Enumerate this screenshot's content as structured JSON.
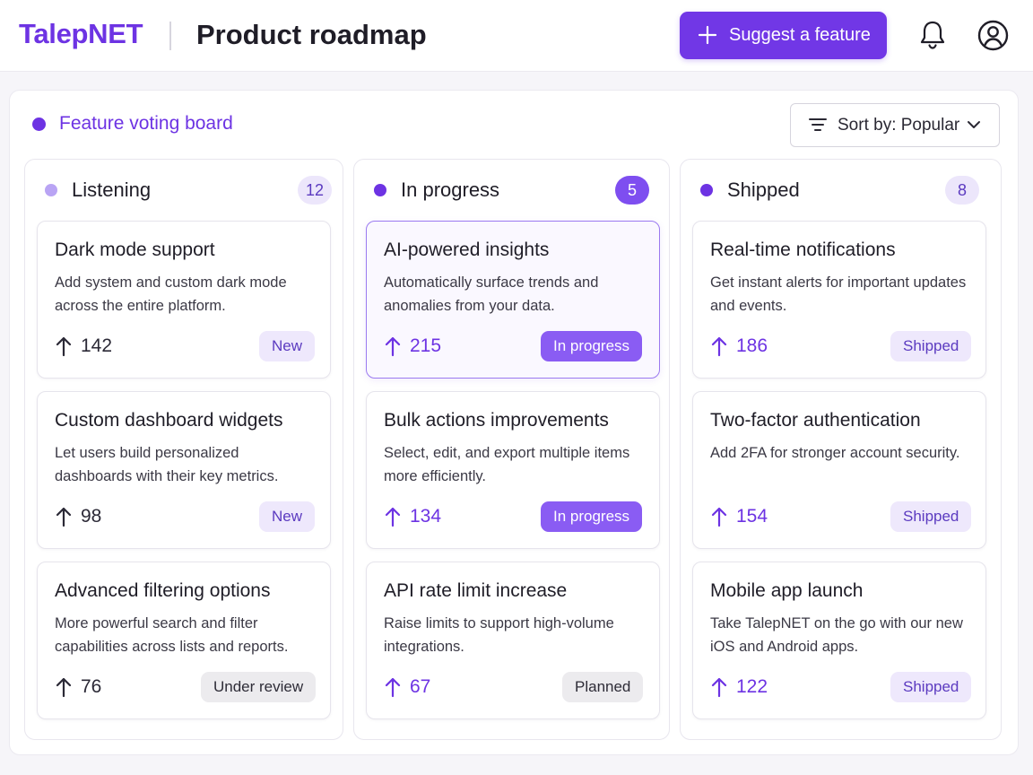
{
  "app": {
    "logo": "TalepNET",
    "page_title": "Product roadmap"
  },
  "header": {
    "suggest_label": "Suggest a feature"
  },
  "board": {
    "title": "Feature voting board",
    "sort_label": "Sort by: Popular"
  },
  "columns": [
    {
      "title": "Listening",
      "count": "12",
      "dot_color": "#b9a4f4",
      "cards": [
        {
          "title": "Dark mode support",
          "desc": "Add system and custom dark mode across the entire platform.",
          "votes": "142",
          "status": "New"
        },
        {
          "title": "Custom dashboard widgets",
          "desc": "Let users build personalized dashboards with their key metrics.",
          "votes": "98",
          "status": "New"
        },
        {
          "title": "Advanced filtering options",
          "desc": "More powerful search and filter capabilities across lists and reports.",
          "votes": "76",
          "status": "Under review"
        }
      ]
    },
    {
      "title": "In progress",
      "count": "5",
      "dot_color": "#6d33e3",
      "cards": [
        {
          "title": "AI-powered insights",
          "desc": "Automatically surface trends and anomalies from your data.",
          "votes": "215",
          "status": "In progress"
        },
        {
          "title": "Bulk actions improvements",
          "desc": "Select, edit, and export multiple items more efficiently.",
          "votes": "134",
          "status": "In progress"
        },
        {
          "title": "API rate limit increase",
          "desc": "Raise limits to support high-volume integrations.",
          "votes": "67",
          "status": "Planned"
        }
      ]
    },
    {
      "title": "Shipped",
      "count": "8",
      "dot_color": "#6d33e3",
      "cards": [
        {
          "title": "Real-time notifications",
          "desc": "Get instant alerts for important updates and events.",
          "votes": "186",
          "status": "Shipped"
        },
        {
          "title": "Two-factor authentication",
          "desc": "Add 2FA for stronger account security.",
          "votes": "154",
          "status": "Shipped"
        },
        {
          "title": "Mobile app launch",
          "desc": "Take TalepNET on the go with our new iOS and Android apps.",
          "votes": "122",
          "status": "Shipped"
        }
      ]
    }
  ],
  "colors": {
    "brand": "#6d33e3",
    "accent_button": "#7137e6"
  },
  "icons": [
    "plus-icon",
    "bell-icon",
    "user-icon",
    "filter-icon",
    "chevron-down-icon",
    "arrow-up-icon"
  ]
}
